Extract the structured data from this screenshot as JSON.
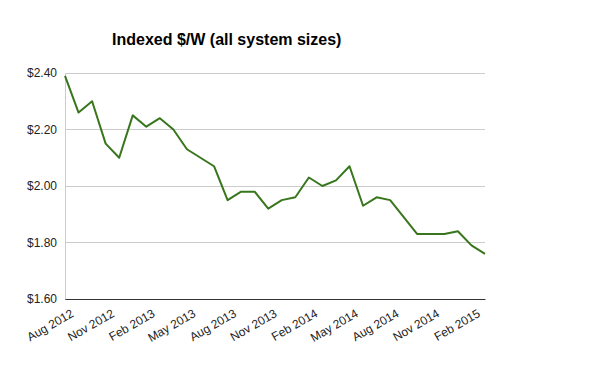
{
  "chart_data": {
    "type": "line",
    "title": "Indexed $/W (all system sizes)",
    "categories": [
      "Aug 2012",
      null,
      null,
      "Nov 2012",
      null,
      null,
      "Feb 2013",
      null,
      null,
      "May 2013",
      null,
      null,
      "Aug 2013",
      null,
      null,
      "Nov 2013",
      null,
      null,
      "Feb 2014",
      null,
      null,
      "May 2014",
      null,
      null,
      "Aug 2014",
      null,
      null,
      "Nov 2014",
      null,
      null,
      "Feb 2015",
      null
    ],
    "values": [
      2.39,
      2.26,
      2.3,
      2.15,
      2.1,
      2.25,
      2.21,
      2.24,
      2.2,
      2.13,
      2.1,
      2.07,
      1.95,
      1.98,
      1.98,
      1.92,
      1.95,
      1.96,
      2.03,
      2.0,
      2.02,
      2.07,
      1.93,
      1.96,
      1.95,
      1.89,
      1.83,
      1.83,
      1.83,
      1.84,
      1.79,
      1.76
    ],
    "color": "#38761d",
    "ylim": [
      1.6,
      2.4
    ],
    "yticks": [
      {
        "value": 1.6,
        "label": "$1.60"
      },
      {
        "value": 1.8,
        "label": "$1.80"
      },
      {
        "value": 2.0,
        "label": "$2.00"
      },
      {
        "value": 2.2,
        "label": "$2.20"
      },
      {
        "value": 2.4,
        "label": "$2.40"
      }
    ],
    "grid": true
  }
}
